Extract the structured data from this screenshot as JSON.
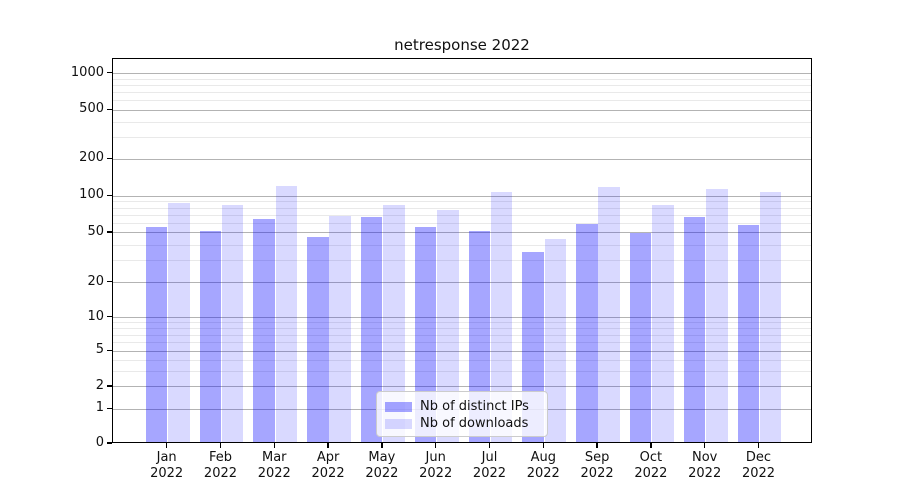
{
  "title": "netresponse 2022",
  "chart_data": {
    "type": "bar",
    "title": "netresponse 2022",
    "months": [
      "Jan",
      "Feb",
      "Mar",
      "Apr",
      "May",
      "Jun",
      "Jul",
      "Aug",
      "Sep",
      "Oct",
      "Nov",
      "Dec"
    ],
    "year": "2022",
    "series": [
      {
        "name": "Nb of distinct IPs",
        "color": "rgba(0,0,255,0.35)",
        "values": [
          54,
          50,
          63,
          45,
          65,
          54,
          50,
          34,
          57,
          48,
          65,
          56
        ]
      },
      {
        "name": "Nb of downloads",
        "color": "rgba(0,0,255,0.15)",
        "values": [
          85,
          81,
          116,
          66,
          82,
          75,
          104,
          43,
          115,
          82,
          110,
          104
        ]
      }
    ],
    "y_axis": {
      "scale": "symlog",
      "ticks": [
        0,
        1,
        2,
        5,
        10,
        20,
        50,
        100,
        200,
        500,
        1000
      ],
      "minor_ticks": [
        3,
        4,
        6,
        7,
        8,
        9,
        30,
        40,
        60,
        70,
        80,
        90,
        300,
        400,
        600,
        700,
        800,
        900
      ]
    },
    "legend": {
      "entries": [
        "Nb of distinct IPs",
        "Nb of downloads"
      ],
      "position": "lower center"
    },
    "grid": "on",
    "accent_color": "#0000ff"
  }
}
